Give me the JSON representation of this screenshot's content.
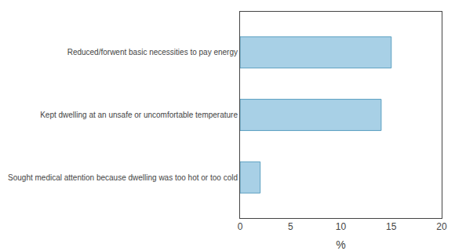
{
  "chart_data": {
    "type": "bar",
    "orientation": "horizontal",
    "categories": [
      "Sought medical attention because dwelling was too hot or too cold",
      "Kept dwelling at an unsafe or uncomfortable temperature",
      "Reduced/forwent basic necessities to pay energy"
    ],
    "values": [
      2.0,
      14.0,
      15.0
    ],
    "color": "#a8d0e6",
    "xlabel": "%",
    "xlim": [
      0,
      20
    ],
    "xticks": [
      0,
      5,
      10,
      15,
      20
    ],
    "grid": false
  }
}
